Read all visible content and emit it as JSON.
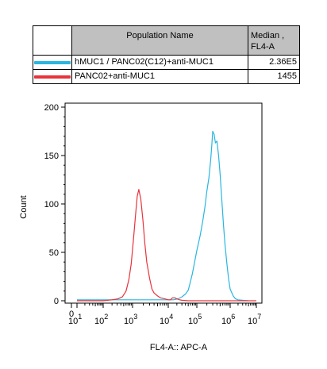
{
  "legend": {
    "header_name": "Population Name",
    "header_value": "Median , FL4-A",
    "rows": [
      {
        "name": "hMUC1 / PANC02(C12)+anti-MUC1",
        "value": "2.36E5",
        "color": "#29b6e0"
      },
      {
        "name": "PANC02+anti-MUC1",
        "value": "1455",
        "color": "#e8333b"
      }
    ]
  },
  "chart_data": {
    "type": "line",
    "xlabel": "FL4-A:: APC-A",
    "ylabel": "Count",
    "x_scale": "log",
    "xlim": [
      0,
      10000000
    ],
    "ylim": [
      0,
      200
    ],
    "x_ticks": [
      {
        "base": "10",
        "exp": "1"
      },
      {
        "base": "10",
        "exp": "2"
      },
      {
        "base": "10",
        "exp": "3"
      },
      {
        "base": "10",
        "exp": "4"
      },
      {
        "base": "10",
        "exp": "5"
      },
      {
        "base": "10",
        "exp": "6"
      },
      {
        "base": "10",
        "exp": "7"
      }
    ],
    "x_zero_label": "0",
    "y_ticks": [
      0,
      50,
      100,
      150,
      200
    ],
    "grid": false,
    "series": [
      {
        "name": "hMUC1 / PANC02(C12)+anti-MUC1",
        "color": "#29b6e0",
        "x": [
          10,
          1000,
          15000,
          22000,
          30000,
          40000,
          50000,
          60000,
          70000,
          80000,
          100000,
          125000,
          150000,
          175000,
          200000,
          230000,
          260000,
          280000,
          300000,
          330000,
          360000,
          400000,
          450000,
          500000,
          560000,
          630000,
          700000,
          800000,
          900000,
          1000000,
          1300000,
          1600000,
          2000000,
          3000000,
          5000000
        ],
        "y": [
          1,
          1,
          1,
          2,
          4,
          7,
          11,
          20,
          28,
          37,
          52,
          67,
          82,
          97,
          113,
          127,
          145,
          160,
          175,
          172,
          163,
          165,
          150,
          130,
          105,
          78,
          58,
          38,
          22,
          12,
          5,
          2,
          1,
          0.5,
          0
        ]
      },
      {
        "name": "PANC02+anti-MUC1",
        "color": "#e8333b",
        "x": [
          10,
          100,
          200,
          320,
          450,
          600,
          750,
          900,
          1050,
          1200,
          1350,
          1500,
          1700,
          1950,
          2200,
          2500,
          3000,
          3500,
          4000,
          5000,
          6000,
          8000,
          10000,
          12000,
          14000,
          17000,
          20000,
          25000,
          30000,
          50000,
          100000,
          1000000,
          10000000
        ],
        "y": [
          0,
          0,
          1,
          2,
          4,
          10,
          22,
          38,
          62,
          87,
          108,
          115,
          105,
          83,
          60,
          40,
          23,
          12,
          8,
          5,
          3,
          2,
          1,
          1,
          3,
          3,
          2,
          1,
          0.5,
          0,
          0,
          0,
          0
        ]
      }
    ]
  }
}
